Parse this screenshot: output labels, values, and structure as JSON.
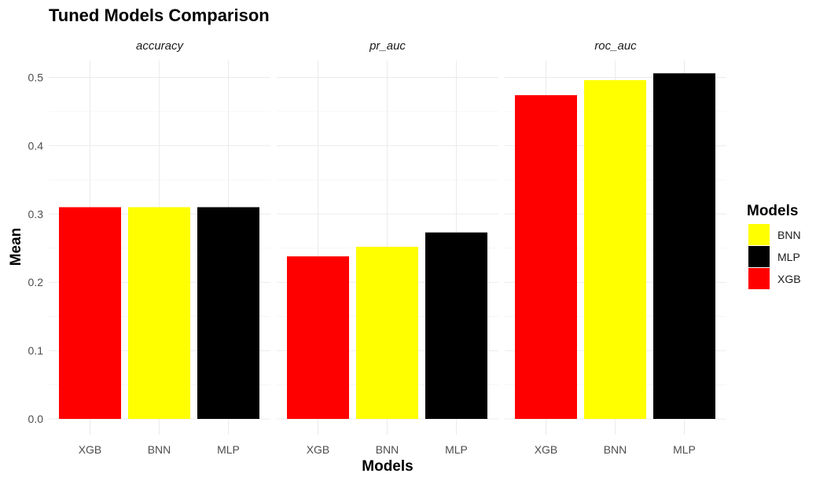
{
  "chart_data": {
    "type": "bar",
    "title": "Tuned Models Comparison",
    "xlabel": "Models",
    "ylabel": "Mean",
    "ylim": [
      0,
      0.53
    ],
    "yticks": [
      "0.0",
      "0.1",
      "0.2",
      "0.3",
      "0.4",
      "0.5"
    ],
    "ytick_values": [
      0,
      0.1,
      0.2,
      0.3,
      0.4,
      0.5
    ],
    "grid": true,
    "legend_position": "right",
    "categories": [
      "XGB",
      "BNN",
      "MLP"
    ],
    "facets": [
      {
        "name": "accuracy",
        "values": [
          0.31,
          0.31,
          0.31
        ]
      },
      {
        "name": "pr_auc",
        "values": [
          0.238,
          0.252,
          0.273
        ]
      },
      {
        "name": "roc_auc",
        "values": [
          0.474,
          0.496,
          0.506
        ]
      }
    ],
    "legend": {
      "title": "Models",
      "entries": [
        {
          "name": "BNN",
          "color": "#ffff00"
        },
        {
          "name": "MLP",
          "color": "#000000"
        },
        {
          "name": "XGB",
          "color": "#ff0000"
        }
      ]
    },
    "colors": {
      "XGB": "#ff0000",
      "BNN": "#ffff00",
      "MLP": "#000000"
    }
  }
}
